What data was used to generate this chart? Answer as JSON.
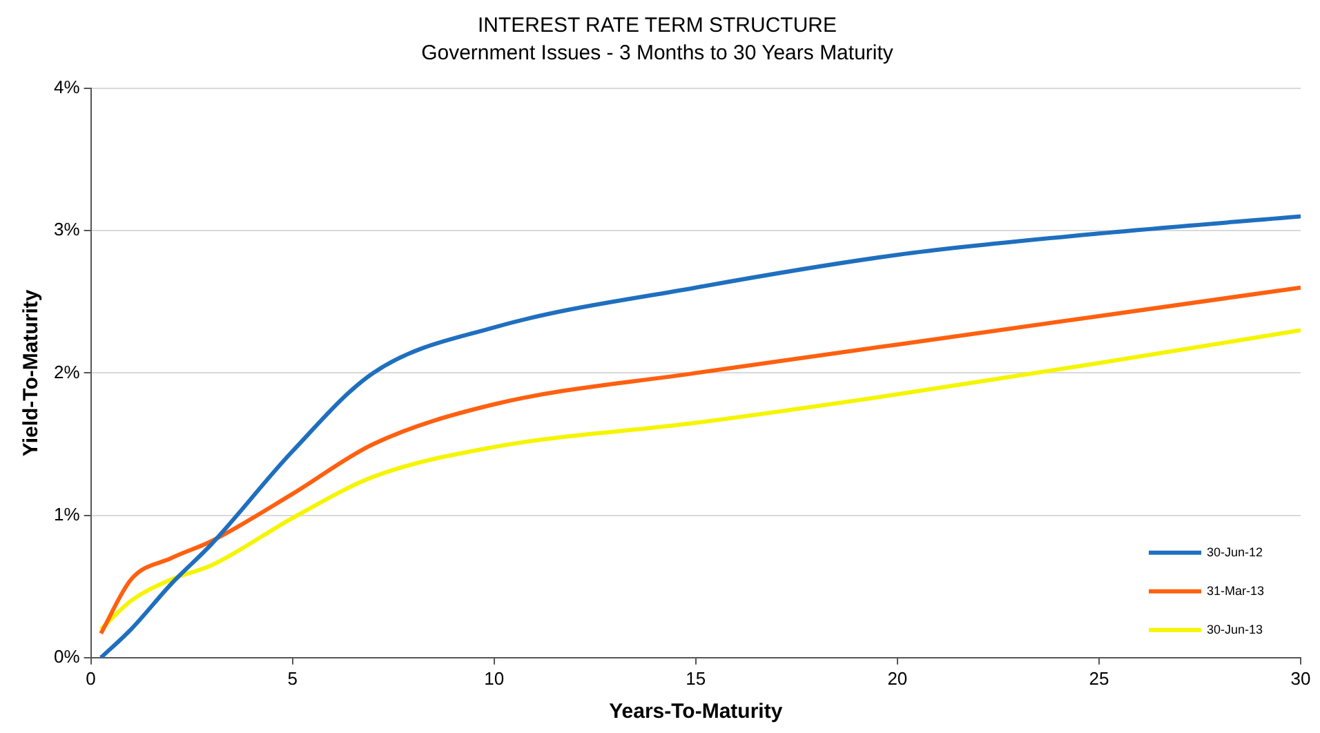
{
  "chart_data": {
    "type": "line",
    "title": "INTEREST RATE TERM STRUCTURE",
    "subtitle": "Government Issues - 3 Months to 30 Years Maturity",
    "xlabel": "Years-To-Maturity",
    "ylabel": "Yield-To-Maturity",
    "x": [
      0.25,
      1,
      2,
      3,
      5,
      7,
      10,
      15,
      20,
      25,
      30
    ],
    "series": [
      {
        "name": "30-Jun-12",
        "color": "#1f6fbf",
        "values": [
          0,
          0.2,
          0.52,
          0.8,
          1.45,
          2.0,
          2.32,
          2.6,
          2.83,
          2.98,
          3.1
        ]
      },
      {
        "name": "31-Mar-13",
        "color": "#ff6010",
        "values": [
          0.17,
          0.55,
          0.7,
          0.82,
          1.15,
          1.5,
          1.78,
          2.0,
          2.2,
          2.4,
          2.6
        ]
      },
      {
        "name": "30-Jun-13",
        "color": "#f5f500",
        "values": [
          0.2,
          0.4,
          0.55,
          0.65,
          0.98,
          1.27,
          1.48,
          1.65,
          1.85,
          2.07,
          2.3
        ]
      }
    ],
    "xlim": [
      0,
      30
    ],
    "xticks": [
      0,
      5,
      10,
      15,
      20,
      25,
      30
    ],
    "ylim": [
      0,
      4
    ],
    "yticks": [
      {
        "value": 0,
        "label": "0%"
      },
      {
        "value": 1,
        "label": "1%"
      },
      {
        "value": 2,
        "label": "2%"
      },
      {
        "value": 3,
        "label": "3%"
      },
      {
        "value": 4,
        "label": "4%"
      }
    ],
    "grid": "y",
    "legend": "bottom right",
    "marker": "none",
    "line_style": "solid"
  }
}
